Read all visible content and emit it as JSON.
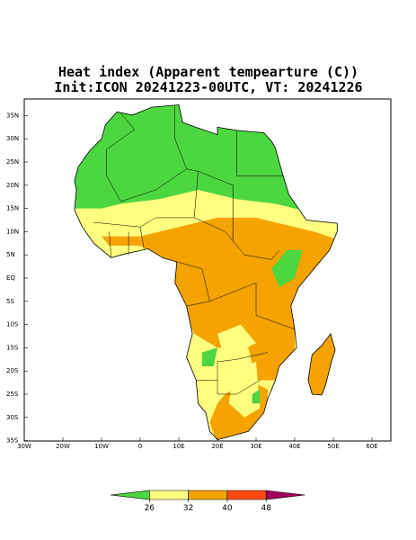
{
  "header": {
    "title": "Heat index (Apparent tempearture (C))",
    "subtitle": "Init:ICON 20241223-00UTC, VT: 20241226"
  },
  "map": {
    "lat_labels": [
      "35N",
      "30N",
      "25N",
      "20N",
      "15N",
      "10N",
      "5N",
      "EQ",
      "5S",
      "10S",
      "15S",
      "20S",
      "25S",
      "30S",
      "35S"
    ],
    "lon_labels": [
      "30W",
      "20W",
      "10W",
      "0",
      "10E",
      "20E",
      "30E",
      "40E",
      "50E",
      "60E"
    ]
  },
  "colorbar": {
    "ticks": [
      26,
      32,
      40,
      48
    ],
    "colors": [
      "#4cd640",
      "#ffff80",
      "#f5a300",
      "#ff4b10",
      "#a0005c"
    ]
  }
}
